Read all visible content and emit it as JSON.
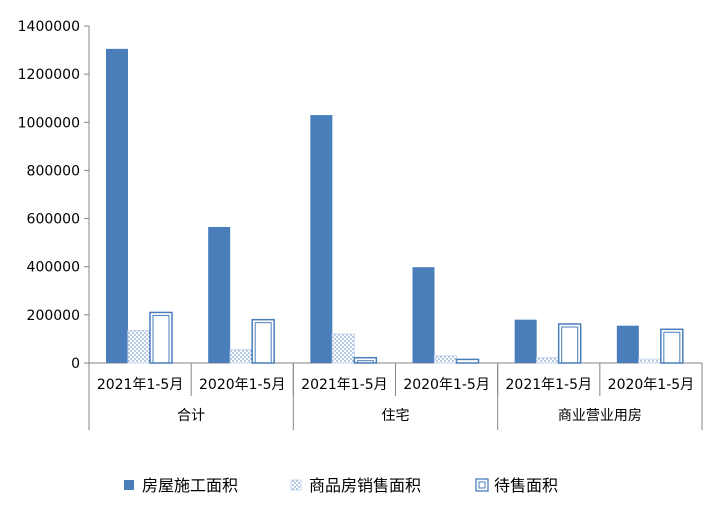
{
  "chart_data": {
    "type": "bar",
    "title": "",
    "xlabel": "",
    "ylabel": "",
    "ylim": [
      0,
      1400000
    ],
    "y_ticks": [
      "0",
      "200000",
      "400000",
      "600000",
      "800000",
      "1000000",
      "1200000",
      "1400000"
    ],
    "groups": [
      {
        "name": "合计",
        "periods": [
          "2021年1-5月",
          "2020年1-5月"
        ]
      },
      {
        "name": "住宅",
        "periods": [
          "2021年1-5月",
          "2020年1-5月"
        ]
      },
      {
        "name": "商业营业用房",
        "periods": [
          "2021年1-5月",
          "2020年1-5月"
        ]
      }
    ],
    "series": [
      {
        "name": "房屋施工面积",
        "values": [
          1305000,
          565000,
          1030000,
          398000,
          180000,
          155000
        ]
      },
      {
        "name": "商品房销售面积",
        "values": [
          135000,
          55000,
          120000,
          30000,
          22000,
          16000
        ]
      },
      {
        "name": "待售面积",
        "values": [
          210000,
          180000,
          22000,
          15000,
          162000,
          140000
        ]
      }
    ],
    "colors": {
      "solid": "#4a7ebb",
      "dotted": "#4a7ebb",
      "outline": "#4a7ebb",
      "axis": "#868686"
    },
    "legend_position": "bottom"
  }
}
